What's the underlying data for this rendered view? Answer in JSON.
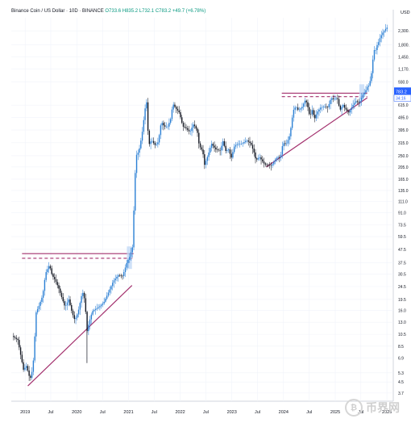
{
  "header": {
    "symbol": "Binance Coin / US Dollar · 10D · BINANCE",
    "open": "O733.6",
    "high": "H835.2",
    "low": "L732.1",
    "close": "C783.2",
    "change": "+49.7 (+6.78%)"
  },
  "watermark": {
    "text": "币界网",
    "icon": "bitcoin-coin-icon"
  },
  "colors": {
    "up": "#2a7fd4",
    "down": "#131722",
    "trendline": "#a3306d",
    "highlight": "#bfd7f5",
    "price_tag": "#2962ff"
  },
  "chart_data": {
    "type": "candlestick",
    "scale": "log",
    "currency": "USD",
    "ylim": [
      3.2,
      2900
    ],
    "y_ticks": [
      "2,300.",
      "1,800.",
      "1,450.",
      "1,170.",
      "930.0",
      "615.0",
      "495.0",
      "395.0",
      "315.0",
      "250.0",
      "205.0",
      "165.0",
      "135.0",
      "111.0",
      "91.0",
      "73.5",
      "59.5",
      "47.5",
      "37.5",
      "30.5",
      "24.5",
      "19.5",
      "16.0",
      "13.0",
      "10.5",
      "8.5",
      "6.9",
      "5.3",
      "4.5",
      "3.7"
    ],
    "x_ticks": [
      "2019",
      "Jul",
      "2020",
      "Jul",
      "2021",
      "Jul",
      "2022",
      "Jul",
      "2023",
      "Jul",
      "2024",
      "Jul",
      "2025",
      "Jul",
      "2026"
    ],
    "xlim": [
      "2018-09-25",
      "2026-02-15"
    ],
    "price_labels": {
      "last": "783.2",
      "second": "34:16"
    },
    "price_path": [
      [
        "2018-10-01",
        10.2
      ],
      [
        "2018-11-10",
        9.5
      ],
      [
        "2018-12-20",
        5.6
      ],
      [
        "2019-01-10",
        6.0
      ],
      [
        "2019-02-05",
        4.7
      ],
      [
        "2019-02-25",
        5.8
      ],
      [
        "2019-03-20",
        15.5
      ],
      [
        "2019-04-10",
        17.5
      ],
      [
        "2019-05-05",
        21.0
      ],
      [
        "2019-05-25",
        31.0
      ],
      [
        "2019-06-22",
        36.0
      ],
      [
        "2019-07-10",
        30.0
      ],
      [
        "2019-08-01",
        27.5
      ],
      [
        "2019-08-25",
        24.0
      ],
      [
        "2019-09-15",
        20.5
      ],
      [
        "2019-10-10",
        17.0
      ],
      [
        "2019-11-05",
        19.5
      ],
      [
        "2019-11-28",
        15.5
      ],
      [
        "2019-12-18",
        13.5
      ],
      [
        "2020-01-10",
        15.5
      ],
      [
        "2020-02-10",
        22.5
      ],
      [
        "2020-02-28",
        19.0
      ],
      [
        "2020-03-13",
        11.0
      ],
      [
        "2020-03-28",
        13.0
      ],
      [
        "2020-04-20",
        15.8
      ],
      [
        "2020-05-15",
        16.5
      ],
      [
        "2020-06-10",
        17.2
      ],
      [
        "2020-07-10",
        18.5
      ],
      [
        "2020-08-15",
        22.5
      ],
      [
        "2020-09-15",
        27.0
      ],
      [
        "2020-10-20",
        30.0
      ],
      [
        "2020-11-20",
        29.5
      ],
      [
        "2020-12-20",
        37.5
      ],
      [
        "2021-01-10",
        42.0
      ],
      [
        "2021-01-30",
        50.0
      ],
      [
        "2021-02-10",
        120.0
      ],
      [
        "2021-02-22",
        250.0
      ],
      [
        "2021-03-15",
        270.0
      ],
      [
        "2021-04-05",
        360.0
      ],
      [
        "2021-04-28",
        580.0
      ],
      [
        "2021-05-10",
        660.0
      ],
      [
        "2021-05-22",
        300.0
      ],
      [
        "2021-06-12",
        330.0
      ],
      [
        "2021-07-10",
        300.0
      ],
      [
        "2021-07-30",
        320.0
      ],
      [
        "2021-08-20",
        460.0
      ],
      [
        "2021-09-10",
        420.0
      ],
      [
        "2021-10-05",
        420.0
      ],
      [
        "2021-10-25",
        480.0
      ],
      [
        "2021-11-10",
        630.0
      ],
      [
        "2021-12-01",
        580.0
      ],
      [
        "2021-12-25",
        540.0
      ],
      [
        "2022-01-20",
        420.0
      ],
      [
        "2022-02-10",
        410.0
      ],
      [
        "2022-03-10",
        380.0
      ],
      [
        "2022-04-05",
        440.0
      ],
      [
        "2022-05-01",
        390.0
      ],
      [
        "2022-05-15",
        300.0
      ],
      [
        "2022-06-10",
        270.0
      ],
      [
        "2022-06-20",
        210.0
      ],
      [
        "2022-07-15",
        250.0
      ],
      [
        "2022-08-10",
        310.0
      ],
      [
        "2022-09-10",
        280.0
      ],
      [
        "2022-10-10",
        275.0
      ],
      [
        "2022-11-05",
        340.0
      ],
      [
        "2022-11-12",
        270.0
      ],
      [
        "2022-12-10",
        280.0
      ],
      [
        "2022-12-28",
        240.0
      ],
      [
        "2023-01-20",
        300.0
      ],
      [
        "2023-02-15",
        310.0
      ],
      [
        "2023-03-15",
        310.0
      ],
      [
        "2023-04-15",
        330.0
      ],
      [
        "2023-05-15",
        310.0
      ],
      [
        "2023-06-10",
        260.0
      ],
      [
        "2023-06-20",
        230.0
      ],
      [
        "2023-07-15",
        245.0
      ],
      [
        "2023-08-20",
        215.0
      ],
      [
        "2023-09-15",
        212.0
      ],
      [
        "2023-10-10",
        210.0
      ],
      [
        "2023-10-30",
        230.0
      ],
      [
        "2023-11-20",
        245.0
      ],
      [
        "2023-12-10",
        240.0
      ],
      [
        "2023-12-28",
        315.0
      ],
      [
        "2024-01-20",
        305.0
      ],
      [
        "2024-02-15",
        360.0
      ],
      [
        "2024-03-10",
        560.0
      ],
      [
        "2024-03-28",
        600.0
      ],
      [
        "2024-04-15",
        560.0
      ],
      [
        "2024-05-10",
        590.0
      ],
      [
        "2024-06-05",
        680.0
      ],
      [
        "2024-06-20",
        600.0
      ],
      [
        "2024-07-05",
        500.0
      ],
      [
        "2024-07-25",
        580.0
      ],
      [
        "2024-08-05",
        470.0
      ],
      [
        "2024-08-25",
        540.0
      ],
      [
        "2024-09-20",
        590.0
      ],
      [
        "2024-10-15",
        600.0
      ],
      [
        "2024-11-10",
        590.0
      ],
      [
        "2024-12-03",
        700.0
      ],
      [
        "2024-12-20",
        680.0
      ],
      [
        "2025-01-15",
        700.0
      ],
      [
        "2025-02-03",
        560.0
      ],
      [
        "2025-02-25",
        620.0
      ],
      [
        "2025-03-10",
        580.0
      ],
      [
        "2025-04-07",
        540.0
      ],
      [
        "2025-04-30",
        600.0
      ],
      [
        "2025-05-25",
        660.0
      ],
      [
        "2025-06-20",
        640.0
      ],
      [
        "2025-07-15",
        740.0
      ],
      [
        "2025-08-01",
        783.2
      ],
      [
        "2025-08-15",
        850.0
      ],
      [
        "2025-08-25",
        870.0
      ],
      [
        "2025-09-05",
        950.0
      ],
      [
        "2025-09-15",
        1100.0
      ],
      [
        "2025-09-22",
        1300.0
      ],
      [
        "2025-10-01",
        1700.0
      ],
      [
        "2025-10-08",
        1550.0
      ],
      [
        "2025-10-15",
        1650.0
      ],
      [
        "2025-10-25",
        1800.0
      ],
      [
        "2025-11-05",
        1900.0
      ],
      [
        "2025-11-15",
        2050.0
      ],
      [
        "2025-11-25",
        2150.0
      ],
      [
        "2025-12-05",
        2250.0
      ],
      [
        "2025-12-15",
        2300.0
      ],
      [
        "2025-12-25",
        2400.0
      ],
      [
        "2026-01-05",
        2450.0
      ]
    ],
    "annotations": [
      {
        "kind": "trendline",
        "from": [
          "2019-01-20",
          4.2
        ],
        "to": [
          "2021-01-25",
          25.0
        ]
      },
      {
        "kind": "resistance",
        "from": [
          "2018-12-10",
          44.0
        ],
        "to": [
          "2021-02-05",
          44.0
        ]
      },
      {
        "kind": "resistance-dashed",
        "from": [
          "2018-12-10",
          40.5
        ],
        "to": [
          "2021-02-05",
          40.5
        ]
      },
      {
        "kind": "highlight",
        "from": [
          "2020-12-20",
          33.5
        ],
        "to": [
          "2021-01-25",
          50.0
        ]
      },
      {
        "kind": "trendline",
        "from": [
          "2023-09-01",
          205.0
        ],
        "to": [
          "2025-08-15",
          700.0
        ]
      },
      {
        "kind": "resistance",
        "from": [
          "2023-12-20",
          760.0
        ],
        "to": [
          "2025-08-15",
          760.0
        ]
      },
      {
        "kind": "resistance-dashed",
        "from": [
          "2023-12-20",
          715.0
        ],
        "to": [
          "2025-08-15",
          715.0
        ]
      },
      {
        "kind": "highlight",
        "from": [
          "2025-06-20",
          690.0
        ],
        "to": [
          "2025-07-25",
          890.0
        ]
      }
    ]
  }
}
